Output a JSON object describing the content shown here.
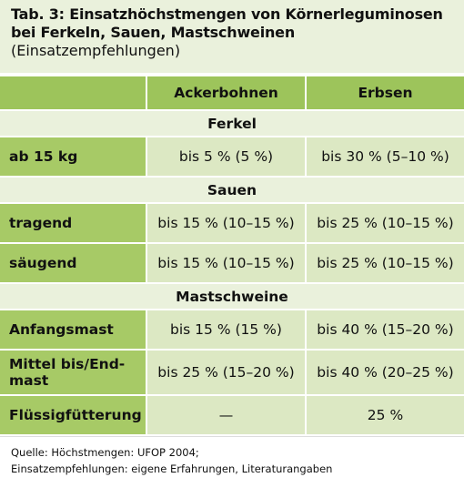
{
  "header": {
    "title_lines": [
      "Tab. 3: Einsatzhöchstmengen von Körnerleguminosen",
      "bei Ferkeln, Sauen, Mastschweinen"
    ],
    "subtitle": "(Einsatzempfehlungen)"
  },
  "table": {
    "columns": [
      "Ackerbohnen",
      "Erbsen"
    ],
    "sections": [
      {
        "title": "Ferkel",
        "rows": [
          {
            "label": "ab 15 kg",
            "values": [
              "bis 5 % (5 %)",
              "bis 30 % (5–10 %)"
            ]
          }
        ]
      },
      {
        "title": "Sauen",
        "rows": [
          {
            "label": "tragend",
            "values": [
              "bis 15 % (10–15 %)",
              "bis 25 % (10–15 %)"
            ]
          },
          {
            "label": "säugend",
            "values": [
              "bis 15 % (10–15 %)",
              "bis 25 % (10–15 %)"
            ]
          }
        ]
      },
      {
        "title": "Mastschweine",
        "rows": [
          {
            "label": "Anfangsmast",
            "values": [
              "bis 15 % (15 %)",
              "bis 40 % (15–20 %)"
            ]
          },
          {
            "label": "Mittel bis/End-\nmast",
            "values": [
              "bis 25 % (15–20 %)",
              "bis 40 % (20–25 %)"
            ]
          },
          {
            "label": "Flüssigfütterung",
            "values": [
              "—",
              "25 %"
            ]
          }
        ]
      }
    ]
  },
  "footer": {
    "lines": [
      "Quelle: Höchstmengen: UFOP 2004;",
      "Einsatzempfehlungen: eigene Erfahrungen, Literaturangaben"
    ]
  }
}
